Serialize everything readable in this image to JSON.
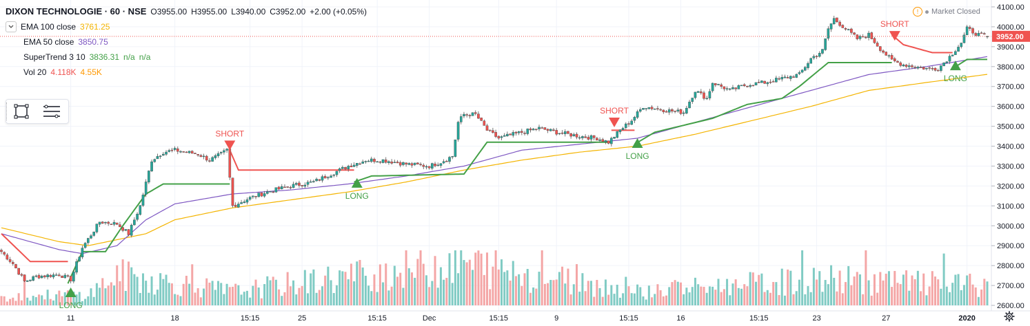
{
  "header": {
    "symbol": "DIXON TECHNOLOGIE · 60 · NSE",
    "open": "O3955.00",
    "high": "H3955.00",
    "low": "L3940.00",
    "close": "C3952.00",
    "change": "+2.00 (+0.05%)"
  },
  "legend": {
    "collapse_icon": "chevron-down-icon",
    "ema100": {
      "label": "EMA 100 close",
      "value": "3761.25",
      "color": "#f4b400"
    },
    "ema50": {
      "label": "EMA 50 close",
      "value": "3850.75",
      "color": "#7e57c2"
    },
    "supertrend": {
      "label": "SuperTrend 3 10",
      "value": "3836.31",
      "extra1": "n/a",
      "extra2": "n/a",
      "color": "#43a047"
    },
    "vol": {
      "label": "Vol 20",
      "value1": "4.118K",
      "value2": "4.55K",
      "color1": "#ef5350",
      "color2": "#ff9800"
    }
  },
  "toolbar": {
    "tool1_icon": "rectangle-select-icon",
    "tool2_icon": "list-lines-icon"
  },
  "status": {
    "market": "Market Closed",
    "warning_icon": "warning-icon"
  },
  "settings_icon": "gear-icon",
  "colors": {
    "up": "#26a69a",
    "down": "#ef5350",
    "ema100": "#f4b400",
    "ema50": "#7e57c2",
    "st_up": "#43a047",
    "st_down": "#ef5350",
    "vol_up": "#80cbc4",
    "vol_down": "#f4a6a6"
  },
  "chart_data": {
    "type": "candlestick",
    "title": "DIXON TECHNOLOGIE · 60 · NSE",
    "y_axis": {
      "ticks": [
        "4100.00",
        "4000.00",
        "3900.00",
        "3800.00",
        "3700.00",
        "3600.00",
        "3500.00",
        "3400.00",
        "3300.00",
        "3200.00",
        "3100.00",
        "3000.00",
        "2900.00",
        "2800.00",
        "2700.00",
        "2600.00"
      ],
      "ylim": [
        2600,
        4100
      ],
      "last_price": "3952.00"
    },
    "x_axis": {
      "ticks": [
        "11",
        "18",
        "15:15",
        "25",
        "15:15",
        "Dec",
        "15:15",
        "9",
        "15:15",
        "16",
        "15:15",
        "23",
        "27",
        "2020"
      ]
    },
    "close_anchors": [
      [
        0,
        2870
      ],
      [
        4,
        2810
      ],
      [
        8,
        2720
      ],
      [
        12,
        2745
      ],
      [
        20,
        2755
      ],
      [
        24,
        2730
      ],
      [
        28,
        2890
      ],
      [
        34,
        3020
      ],
      [
        40,
        3010
      ],
      [
        44,
        2960
      ],
      [
        48,
        3100
      ],
      [
        52,
        3330
      ],
      [
        56,
        3370
      ],
      [
        60,
        3380
      ],
      [
        64,
        3370
      ],
      [
        68,
        3360
      ],
      [
        72,
        3330
      ],
      [
        76,
        3360
      ],
      [
        78,
        3380
      ],
      [
        80,
        3100
      ],
      [
        86,
        3140
      ],
      [
        92,
        3170
      ],
      [
        100,
        3200
      ],
      [
        108,
        3220
      ],
      [
        114,
        3260
      ],
      [
        120,
        3300
      ],
      [
        126,
        3330
      ],
      [
        132,
        3330
      ],
      [
        140,
        3310
      ],
      [
        148,
        3300
      ],
      [
        152,
        3320
      ],
      [
        156,
        3350
      ],
      [
        158,
        3520
      ],
      [
        160,
        3560
      ],
      [
        164,
        3560
      ],
      [
        168,
        3480
      ],
      [
        172,
        3440
      ],
      [
        180,
        3470
      ],
      [
        186,
        3490
      ],
      [
        192,
        3470
      ],
      [
        200,
        3450
      ],
      [
        206,
        3440
      ],
      [
        210,
        3420
      ],
      [
        214,
        3480
      ],
      [
        218,
        3530
      ],
      [
        222,
        3600
      ],
      [
        230,
        3580
      ],
      [
        236,
        3570
      ],
      [
        240,
        3680
      ],
      [
        244,
        3640
      ],
      [
        246,
        3720
      ],
      [
        252,
        3680
      ],
      [
        258,
        3710
      ],
      [
        264,
        3720
      ],
      [
        270,
        3740
      ],
      [
        276,
        3760
      ],
      [
        280,
        3840
      ],
      [
        284,
        3880
      ],
      [
        286,
        3990
      ],
      [
        288,
        4040
      ],
      [
        292,
        3990
      ],
      [
        296,
        3940
      ],
      [
        300,
        3960
      ],
      [
        304,
        3890
      ],
      [
        308,
        3830
      ],
      [
        312,
        3810
      ],
      [
        316,
        3800
      ],
      [
        320,
        3790
      ],
      [
        324,
        3790
      ],
      [
        328,
        3850
      ],
      [
        332,
        3920
      ],
      [
        334,
        3990
      ],
      [
        338,
        3960
      ],
      [
        341,
        3952
      ]
    ],
    "volume_anchors": [
      [
        0,
        2.0
      ],
      [
        30,
        2.3
      ],
      [
        40,
        6.5
      ],
      [
        80,
        3.0
      ],
      [
        158,
        9.2
      ],
      [
        220,
        3.0
      ],
      [
        286,
        5.6
      ],
      [
        341,
        4.1
      ]
    ],
    "signals": [
      {
        "label": "LONG",
        "type": "long",
        "index": 24,
        "price": 2690
      },
      {
        "label": "SHORT",
        "type": "short",
        "index": 79,
        "price": 3380
      },
      {
        "label": "LONG",
        "type": "long",
        "index": 123,
        "price": 3240
      },
      {
        "label": "SHORT",
        "type": "short",
        "index": 212,
        "price": 3495
      },
      {
        "label": "LONG",
        "type": "long",
        "index": 220,
        "price": 3440
      },
      {
        "label": "SHORT",
        "type": "short",
        "index": 309,
        "price": 3930
      },
      {
        "label": "LONG",
        "type": "long",
        "index": 330,
        "price": 3830
      }
    ],
    "supertrend": {
      "down_segments": [
        {
          "from": 0,
          "to": 23,
          "values": [
            [
              0,
              2960
            ],
            [
              10,
              2820
            ],
            [
              23,
              2820
            ]
          ]
        },
        {
          "from": 79,
          "to": 122,
          "values": [
            [
              79,
              3380
            ],
            [
              82,
              3280
            ],
            [
              122,
              3280
            ]
          ]
        },
        {
          "from": 211,
          "to": 219,
          "values": [
            [
              211,
              3480
            ],
            [
              219,
              3480
            ]
          ]
        },
        {
          "from": 308,
          "to": 329,
          "values": [
            [
              308,
              3960
            ],
            [
              312,
              3910
            ],
            [
              322,
              3870
            ],
            [
              329,
              3870
            ]
          ]
        }
      ],
      "up_segments": [
        {
          "from": 23,
          "to": 79,
          "values": [
            [
              23,
              2710
            ],
            [
              28,
              2870
            ],
            [
              36,
              2870
            ],
            [
              42,
              3000
            ],
            [
              50,
              3160
            ],
            [
              56,
              3210
            ],
            [
              79,
              3210
            ]
          ]
        },
        {
          "from": 122,
          "to": 211,
          "values": [
            [
              122,
              3220
            ],
            [
              128,
              3250
            ],
            [
              160,
              3260
            ],
            [
              168,
              3420
            ],
            [
              211,
              3420
            ]
          ]
        },
        {
          "from": 219,
          "to": 308,
          "values": [
            [
              219,
              3410
            ],
            [
              226,
              3470
            ],
            [
              246,
              3540
            ],
            [
              258,
              3610
            ],
            [
              270,
              3640
            ],
            [
              276,
              3700
            ],
            [
              286,
              3820
            ],
            [
              308,
              3820
            ]
          ]
        },
        {
          "from": 329,
          "to": 341,
          "values": [
            [
              329,
              3790
            ],
            [
              334,
              3836
            ],
            [
              341,
              3836
            ]
          ]
        }
      ]
    },
    "ema50": [
      [
        0,
        2960
      ],
      [
        20,
        2880
      ],
      [
        28,
        2860
      ],
      [
        40,
        2900
      ],
      [
        50,
        3030
      ],
      [
        60,
        3110
      ],
      [
        80,
        3160
      ],
      [
        100,
        3180
      ],
      [
        120,
        3210
      ],
      [
        140,
        3250
      ],
      [
        160,
        3300
      ],
      [
        180,
        3380
      ],
      [
        200,
        3410
      ],
      [
        220,
        3440
      ],
      [
        240,
        3520
      ],
      [
        260,
        3600
      ],
      [
        280,
        3680
      ],
      [
        300,
        3760
      ],
      [
        320,
        3800
      ],
      [
        341,
        3850
      ]
    ],
    "ema100": [
      [
        0,
        2990
      ],
      [
        20,
        2920
      ],
      [
        30,
        2900
      ],
      [
        50,
        2960
      ],
      [
        60,
        3030
      ],
      [
        80,
        3090
      ],
      [
        100,
        3130
      ],
      [
        120,
        3170
      ],
      [
        140,
        3220
      ],
      [
        160,
        3280
      ],
      [
        180,
        3330
      ],
      [
        200,
        3370
      ],
      [
        220,
        3400
      ],
      [
        240,
        3460
      ],
      [
        260,
        3530
      ],
      [
        280,
        3600
      ],
      [
        300,
        3680
      ],
      [
        320,
        3720
      ],
      [
        341,
        3761
      ]
    ]
  }
}
